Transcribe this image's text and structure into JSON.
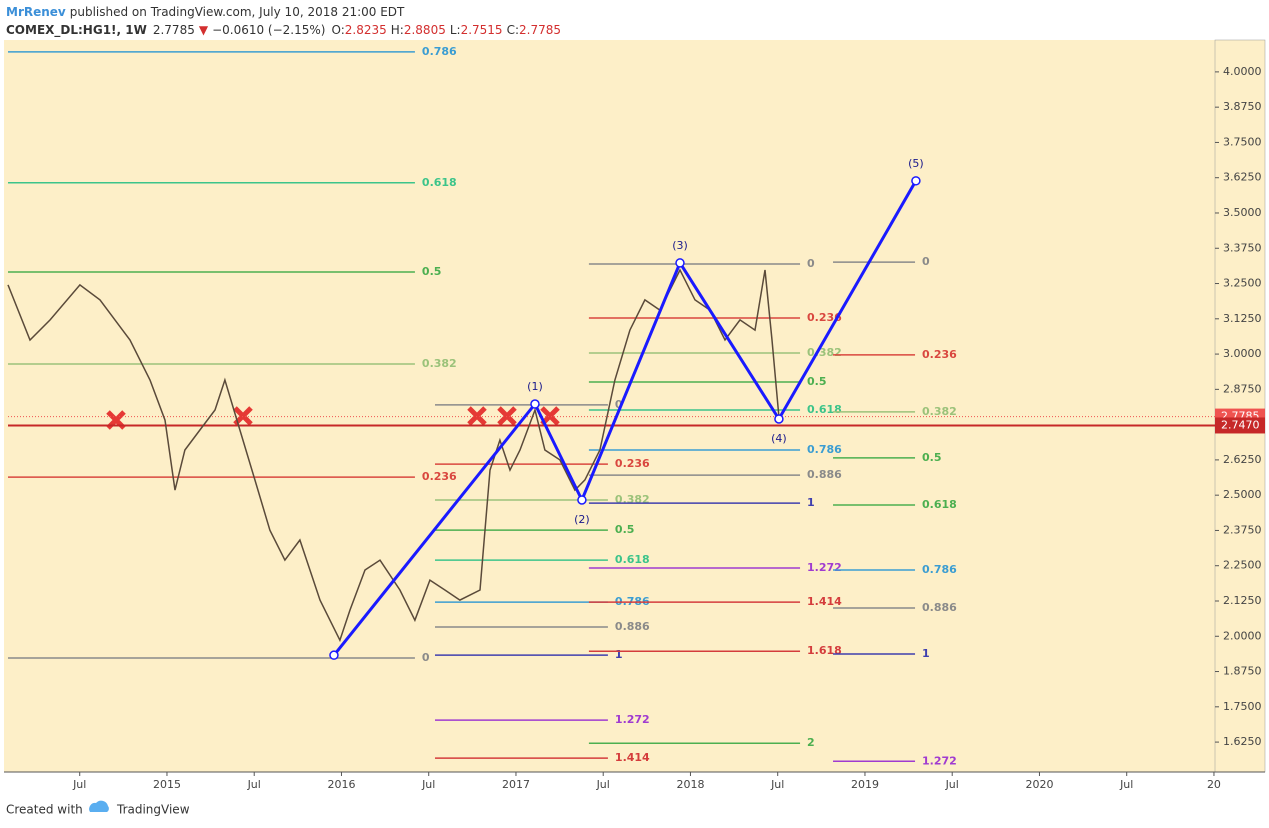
{
  "header": {
    "author": "MrRenev",
    "published": "published on TradingView.com, July 10, 2018 21:00 EDT",
    "symbol": "COMEX_DL:HG1!, 1W",
    "last": "2.7785",
    "arrow": "▼",
    "change": "−0.0610 (−2.15%)",
    "ohlc": [
      {
        "label": "O:",
        "value": "2.8235"
      },
      {
        "label": "H:",
        "value": "2.8805"
      },
      {
        "label": "L:",
        "value": "2.7515"
      },
      {
        "label": "C:",
        "value": "2.7785"
      }
    ]
  },
  "footer": {
    "created": "Created with",
    "brand": "TradingView"
  },
  "chart_data": {
    "type": "line",
    "xlim": [
      2014.089,
      2021.006
    ],
    "ylim": [
      1.519,
      4.113
    ],
    "grid": false,
    "xticks": [
      {
        "value": 2014.5,
        "label": "Jul"
      },
      2015,
      {
        "value": 2015.5,
        "label": "Jul"
      },
      2016,
      {
        "value": 2016.5,
        "label": "Jul"
      },
      2017,
      {
        "value": 2017.5,
        "label": "Jul"
      },
      2018,
      {
        "value": 2018.5,
        "label": "Jul"
      },
      2019,
      {
        "value": 2019.5,
        "label": "Jul"
      },
      2020,
      {
        "value": 2020.5,
        "label": "Jul"
      },
      {
        "value": 2021,
        "label": "20"
      }
    ],
    "yticks": [
      {
        "value": 1.625,
        "label": "1.6250"
      },
      {
        "value": 1.75,
        "label": "1.7500"
      },
      {
        "value": 1.875,
        "label": "1.8750"
      },
      {
        "value": 2,
        "label": "2.0000"
      },
      {
        "value": 2.125,
        "label": "2.1250"
      },
      {
        "value": 2.25,
        "label": "2.2500"
      },
      {
        "value": 2.375,
        "label": "2.3750"
      },
      {
        "value": 2.5,
        "label": "2.5000"
      },
      {
        "value": 2.625,
        "label": "2.6250"
      },
      {
        "value": 2.75,
        "label": "2.7500"
      },
      {
        "value": 2.875,
        "label": "2.8750"
      },
      {
        "value": 3,
        "label": "3.0000"
      },
      {
        "value": 3.125,
        "label": "3.1250"
      },
      {
        "value": 3.25,
        "label": "3.2500"
      },
      {
        "value": 3.375,
        "label": "3.3750"
      },
      {
        "value": 3.5,
        "label": "3.5000"
      },
      {
        "value": 3.625,
        "label": "3.6250"
      },
      {
        "value": 3.75,
        "label": "3.7500"
      },
      {
        "value": 3.875,
        "label": "3.8750"
      },
      {
        "value": 4,
        "label": "4.0000"
      }
    ],
    "price": {
      "color": "#5a4a3a",
      "x": [
        2014.089,
        2014.215,
        2014.33,
        2014.501,
        2014.616,
        2014.788,
        2014.903,
        2014.989,
        2015.046,
        2015.103,
        2015.189,
        2015.275,
        2015.332,
        2015.418,
        2015.504,
        2015.59,
        2015.676,
        2015.762,
        2015.877,
        2015.991,
        2016.049,
        2016.135,
        2016.221,
        2016.335,
        2016.421,
        2016.507,
        2016.593,
        2016.679,
        2016.794,
        2016.851,
        2016.908,
        2016.966,
        2017.023,
        2017.109,
        2017.166,
        2017.252,
        2017.338,
        2017.395,
        2017.481,
        2017.567,
        2017.653,
        2017.739,
        2017.825,
        2017.94,
        2018.026,
        2018.112,
        2018.198,
        2018.284,
        2018.37,
        2018.427,
        2018.467,
        2018.507
      ],
      "y": [
        3.245,
        3.05,
        3.121,
        3.245,
        3.192,
        3.05,
        2.908,
        2.766,
        2.518,
        2.66,
        2.731,
        2.802,
        2.908,
        2.731,
        2.554,
        2.376,
        2.27,
        2.341,
        2.128,
        1.986,
        2.093,
        2.235,
        2.27,
        2.164,
        2.057,
        2.199,
        2.164,
        2.128,
        2.164,
        2.589,
        2.695,
        2.589,
        2.66,
        2.802,
        2.66,
        2.625,
        2.518,
        2.554,
        2.66,
        2.908,
        3.085,
        3.192,
        3.156,
        3.298,
        3.192,
        3.156,
        3.05,
        3.121,
        3.085,
        3.298,
        3.05,
        2.7785
      ]
    },
    "price_tags": [
      {
        "value": 2.7785,
        "color": "#ef5350"
      },
      {
        "value": 2.747,
        "label": "2.7470",
        "color": "#c62828"
      }
    ],
    "waves": {
      "color": "#1a1aff",
      "x": [
        2015.957,
        2017.109,
        2017.378,
        2017.94,
        2018.507,
        2019.292
      ],
      "y": [
        1.933,
        2.823,
        2.483,
        3.323,
        2.77,
        3.614
      ],
      "labels": [
        null,
        "(1)",
        "(2)",
        "(3)",
        "(4)",
        "(5)"
      ]
    },
    "fibs": [
      {
        "x": [
          2014.089,
          2016.421
        ],
        "levels": [
          {
            "ratio": 0.786,
            "price": 4.071,
            "color": "#3b9dd2"
          },
          {
            "ratio": 0.618,
            "price": 3.607,
            "color": "#3cc48a"
          },
          {
            "ratio": 0.5,
            "price": 3.291,
            "color": "#4caf50"
          },
          {
            "ratio": 0.382,
            "price": 2.965,
            "color": "#9bc27a"
          },
          {
            "ratio": 0.236,
            "price": 2.564,
            "color": "#d9473f"
          },
          {
            "ratio": 0,
            "price": 1.923,
            "color": "#8a8a8a"
          }
        ]
      },
      {
        "x": [
          2016.536,
          2017.527
        ],
        "levels": [
          {
            "ratio": 0,
            "price": 2.82,
            "color": "#8a8a8a"
          },
          {
            "ratio": 0.236,
            "price": 2.61,
            "color": "#d9473f"
          },
          {
            "ratio": 0.382,
            "price": 2.483,
            "color": "#9bc27a"
          },
          {
            "ratio": 0.5,
            "price": 2.376,
            "color": "#4caf50"
          },
          {
            "ratio": 0.618,
            "price": 2.27,
            "color": "#3cc48a"
          },
          {
            "ratio": 0.786,
            "price": 2.121,
            "color": "#3b9dd2"
          },
          {
            "ratio": 0.886,
            "price": 2.033,
            "color": "#8a8a8a"
          },
          {
            "ratio": 1,
            "price": 1.933,
            "color": "#3f3fae"
          },
          {
            "ratio": 1.272,
            "price": 1.703,
            "color": "#a03bd0"
          },
          {
            "ratio": 1.414,
            "price": 1.568,
            "color": "#d43c3c"
          }
        ]
      },
      {
        "x": [
          2017.418,
          2018.628
        ],
        "levels": [
          {
            "ratio": 0,
            "price": 3.319,
            "color": "#8a8a8a"
          },
          {
            "ratio": 0.236,
            "price": 3.128,
            "color": "#d9473f"
          },
          {
            "ratio": 0.382,
            "price": 3.004,
            "color": "#9bc27a"
          },
          {
            "ratio": 0.5,
            "price": 2.901,
            "color": "#4caf50"
          },
          {
            "ratio": 0.618,
            "price": 2.802,
            "color": "#3cc48a"
          },
          {
            "ratio": 0.786,
            "price": 2.66,
            "color": "#3b9dd2"
          },
          {
            "ratio": 0.886,
            "price": 2.571,
            "color": "#8a8a8a"
          },
          {
            "ratio": 1,
            "price": 2.472,
            "color": "#3f3fae"
          },
          {
            "ratio": 1.272,
            "price": 2.242,
            "color": "#a03bd0"
          },
          {
            "ratio": 1.414,
            "price": 2.121,
            "color": "#d43c3c"
          },
          {
            "ratio": 1.618,
            "price": 1.947,
            "color": "#d43c3c"
          },
          {
            "ratio": 2,
            "price": 1.621,
            "color": "#4caf50"
          }
        ]
      },
      {
        "x": [
          2018.817,
          2019.287
        ],
        "levels": [
          {
            "ratio": 0,
            "price": 3.326,
            "color": "#8a8a8a"
          },
          {
            "ratio": 0.236,
            "price": 2.997,
            "color": "#d9473f"
          },
          {
            "ratio": 0.382,
            "price": 2.795,
            "color": "#9bc27a"
          },
          {
            "ratio": 0.5,
            "price": 2.632,
            "color": "#4caf50"
          },
          {
            "ratio": 0.618,
            "price": 2.465,
            "color": "#4caf50"
          },
          {
            "ratio": 0.786,
            "price": 2.235,
            "color": "#3b9dd2"
          },
          {
            "ratio": 0.886,
            "price": 2.1,
            "color": "#8a8a8a"
          },
          {
            "ratio": 1,
            "price": 1.937,
            "color": "#3f3fae"
          },
          {
            "ratio": 1.272,
            "price": 1.557,
            "color": "#a03bd0"
          }
        ]
      }
    ]
  }
}
